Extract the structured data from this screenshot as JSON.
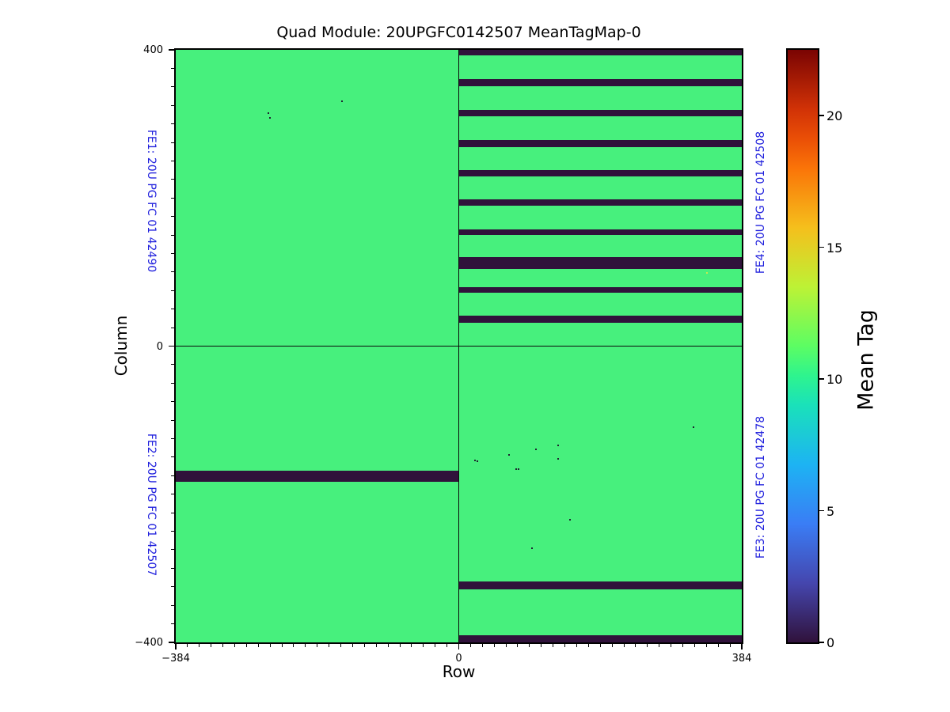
{
  "title": "Quad Module: 20UPGFC0142507 MeanTagMap-0",
  "colors": {
    "base_green": "#47f07d",
    "dead_stripe": "#30123b",
    "fe_label_blue": "#2121dd",
    "axis_black": "#000000",
    "speckle_dark": "#1e2430"
  },
  "chart_data": {
    "type": "heatmap",
    "title": "Quad Module: 20UPGFC0142507 MeanTagMap-0",
    "xlabel": "Row",
    "ylabel": "Column",
    "xlim": [
      -384,
      384
    ],
    "ylim": [
      -400,
      400
    ],
    "x_major_ticks": [
      -384,
      0,
      384
    ],
    "y_major_ticks": [
      -400,
      0,
      400
    ],
    "x_minor_step": 16,
    "y_minor_step": 25,
    "grid": false,
    "base_value": 10,
    "stripe_value": 0,
    "colorbar": {
      "label": "Mean Tag",
      "ticks": [
        0,
        5,
        10,
        15,
        20
      ],
      "vmin": 0,
      "vmax": 22.5,
      "colormap": "turbo",
      "gradient": [
        {
          "t": 0.0,
          "c": "#30123b"
        },
        {
          "t": 0.1,
          "c": "#4546ae"
        },
        {
          "t": 0.2,
          "c": "#3a7df5"
        },
        {
          "t": 0.3,
          "c": "#1db3f3"
        },
        {
          "t": 0.4,
          "c": "#1ae1ba"
        },
        {
          "t": 0.45,
          "c": "#2ef48e"
        },
        {
          "t": 0.5,
          "c": "#5cfd63"
        },
        {
          "t": 0.6,
          "c": "#bdf235"
        },
        {
          "t": 0.7,
          "c": "#f5bf1c"
        },
        {
          "t": 0.8,
          "c": "#fa7408"
        },
        {
          "t": 0.85,
          "c": "#ea4f06"
        },
        {
          "t": 0.9,
          "c": "#d13206"
        },
        {
          "t": 1.0,
          "c": "#7a0403"
        }
      ]
    },
    "quadrants": [
      {
        "id": "FE1",
        "label": "FE1: 20U PG FC 01 42490",
        "position": "top-left"
      },
      {
        "id": "FE2",
        "label": "FE2: 20U PG FC 01 42507",
        "position": "bottom-left"
      },
      {
        "id": "FE3",
        "label": "FE3: 20U PG FC 01 42478",
        "position": "bottom-right"
      },
      {
        "id": "FE4",
        "label": "FE4: 20U PG FC 01 42508",
        "position": "top-right"
      }
    ],
    "dead_stripes": [
      {
        "fe": "FE4",
        "rows": [
          0,
          384
        ],
        "cols": [
          392,
          400
        ]
      },
      {
        "fe": "FE4",
        "rows": [
          0,
          384
        ],
        "cols": [
          351,
          360
        ]
      },
      {
        "fe": "FE4",
        "rows": [
          0,
          384
        ],
        "cols": [
          310,
          319
        ]
      },
      {
        "fe": "FE4",
        "rows": [
          0,
          384
        ],
        "cols": [
          269,
          278
        ]
      },
      {
        "fe": "FE4",
        "rows": [
          0,
          384
        ],
        "cols": [
          229,
          238
        ]
      },
      {
        "fe": "FE4",
        "rows": [
          0,
          384
        ],
        "cols": [
          190,
          198
        ]
      },
      {
        "fe": "FE4",
        "rows": [
          0,
          384
        ],
        "cols": [
          150,
          158
        ]
      },
      {
        "fe": "FE4",
        "rows": [
          0,
          384
        ],
        "cols": [
          104,
          120
        ]
      },
      {
        "fe": "FE4",
        "rows": [
          0,
          384
        ],
        "cols": [
          72,
          80
        ]
      },
      {
        "fe": "FE4",
        "rows": [
          0,
          384
        ],
        "cols": [
          32,
          41
        ]
      },
      {
        "fe": "FE2",
        "rows": [
          -384,
          0
        ],
        "cols": [
          -183,
          -168
        ]
      },
      {
        "fe": "FE3",
        "rows": [
          0,
          384
        ],
        "cols": [
          -328,
          -318
        ]
      },
      {
        "fe": "FE3",
        "rows": [
          0,
          384
        ],
        "cols": [
          -400,
          -390
        ]
      }
    ],
    "speckles": [
      {
        "row": -258,
        "col": 315
      },
      {
        "row": -256,
        "col": 308
      },
      {
        "row": -158,
        "col": 331
      },
      {
        "row": 22,
        "col": -154
      },
      {
        "row": 25,
        "col": -155
      },
      {
        "row": 68,
        "col": -147
      },
      {
        "row": 78,
        "col": -166
      },
      {
        "row": 81,
        "col": -166
      },
      {
        "row": 105,
        "col": -139
      },
      {
        "row": 135,
        "col": -134
      },
      {
        "row": 135,
        "col": -152
      },
      {
        "row": 151,
        "col": -234
      },
      {
        "row": 99,
        "col": -273
      },
      {
        "row": 319,
        "col": -109
      },
      {
        "row": 337,
        "col": 99,
        "c": "#c8e94f"
      }
    ]
  }
}
